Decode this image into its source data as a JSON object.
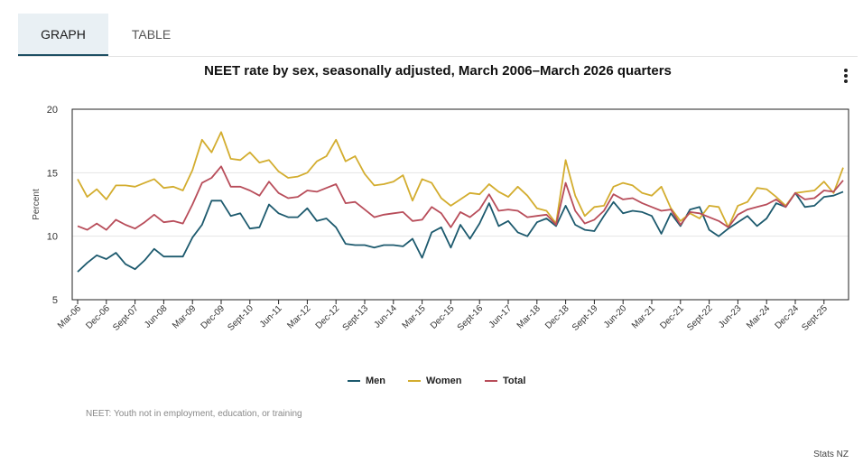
{
  "tabs": [
    {
      "label": "GRAPH"
    },
    {
      "label": "TABLE"
    }
  ],
  "footnote": "NEET: Youth not in employment, education, or training",
  "source": "Stats NZ",
  "chart_data": {
    "type": "line",
    "title": "NEET rate by sex, seasonally adjusted, March 2006–March 2026 quarters",
    "xlabel": "",
    "ylabel": "Percent",
    "ylim": [
      5,
      20
    ],
    "yticks": [
      5,
      10,
      15,
      20
    ],
    "grid": true,
    "legend_position": "bottom",
    "x": [
      "Mar-06",
      "Jun-06",
      "Sept-06",
      "Dec-06",
      "Mar-07",
      "Jun-07",
      "Sept-07",
      "Dec-07",
      "Mar-08",
      "Jun-08",
      "Sept-08",
      "Dec-08",
      "Mar-09",
      "Jun-09",
      "Sept-09",
      "Dec-09",
      "Mar-10",
      "Jun-10",
      "Sept-10",
      "Dec-10",
      "Mar-11",
      "Jun-11",
      "Sept-11",
      "Dec-11",
      "Mar-12",
      "Jun-12",
      "Sept-12",
      "Dec-12",
      "Mar-13",
      "Jun-13",
      "Sept-13",
      "Dec-13",
      "Mar-14",
      "Jun-14",
      "Sept-14",
      "Dec-14",
      "Mar-15",
      "Jun-15",
      "Sept-15",
      "Dec-15",
      "Mar-16",
      "Jun-16",
      "Sept-16",
      "Dec-16",
      "Mar-17",
      "Jun-17",
      "Sept-17",
      "Dec-17",
      "Mar-18",
      "Jun-18",
      "Sept-18",
      "Dec-18",
      "Mar-19",
      "Jun-19",
      "Sept-19",
      "Dec-19",
      "Mar-20",
      "Jun-20",
      "Sept-20",
      "Dec-20",
      "Mar-21",
      "Jun-21",
      "Sept-21",
      "Dec-21",
      "Mar-22",
      "Jun-22",
      "Sept-22",
      "Dec-22",
      "Mar-23",
      "Jun-23",
      "Sept-23",
      "Dec-23",
      "Mar-24",
      "Jun-24",
      "Sept-24",
      "Dec-24",
      "Mar-25",
      "Jun-25",
      "Sept-25",
      "Dec-25",
      "Mar-26"
    ],
    "xtick_labels": [
      "Mar-06",
      "Dec-06",
      "Sept-07",
      "Jun-08",
      "Mar-09",
      "Dec-09",
      "Sept-10",
      "Jun-11",
      "Mar-12",
      "Dec-12",
      "Sept-13",
      "Jun-14",
      "Mar-15",
      "Dec-15",
      "Sept-16",
      "Jun-17",
      "Mar-18",
      "Dec-18",
      "Sept-19",
      "Jun-20",
      "Mar-21",
      "Dec-21",
      "Sept-22",
      "Jun-23",
      "Mar-24",
      "Dec-24",
      "Sept-25"
    ],
    "series": [
      {
        "name": "Men",
        "color": "#1d5a6e",
        "values": [
          7.2,
          7.9,
          8.5,
          8.2,
          8.7,
          7.8,
          7.4,
          8.1,
          9.0,
          8.4,
          8.4,
          8.4,
          9.9,
          10.9,
          12.8,
          12.8,
          11.6,
          11.8,
          10.6,
          10.7,
          12.5,
          11.8,
          11.5,
          11.5,
          12.2,
          11.2,
          11.4,
          10.7,
          9.4,
          9.3,
          9.3,
          9.1,
          9.3,
          9.3,
          9.2,
          9.8,
          8.3,
          10.3,
          10.7,
          9.1,
          10.9,
          9.8,
          11.0,
          12.6,
          10.8,
          11.2,
          10.3,
          10.0,
          11.1,
          11.4,
          10.8,
          12.4,
          10.9,
          10.5,
          10.4,
          11.6,
          12.7,
          11.8,
          12.0,
          11.9,
          11.6,
          10.2,
          11.8,
          10.8,
          12.1,
          12.3,
          10.5,
          10.0,
          10.6,
          11.1,
          11.6,
          10.8,
          11.4,
          12.6,
          12.3,
          13.4,
          12.3,
          12.4,
          13.1,
          13.2,
          13.5
        ]
      },
      {
        "name": "Women",
        "color": "#d3ad2f",
        "values": [
          14.5,
          13.1,
          13.7,
          12.9,
          14.0,
          14.0,
          13.9,
          14.2,
          14.5,
          13.8,
          13.9,
          13.6,
          15.2,
          17.6,
          16.6,
          18.2,
          16.1,
          16.0,
          16.6,
          15.8,
          16.0,
          15.1,
          14.6,
          14.7,
          15.0,
          15.9,
          16.3,
          17.6,
          15.9,
          16.3,
          14.9,
          14.0,
          14.1,
          14.3,
          14.8,
          12.8,
          14.5,
          14.2,
          13.0,
          12.4,
          12.9,
          13.4,
          13.3,
          14.1,
          13.5,
          13.1,
          13.9,
          13.2,
          12.2,
          12.0,
          11.0,
          16.0,
          13.2,
          11.6,
          12.3,
          12.4,
          13.9,
          14.2,
          14.0,
          13.4,
          13.2,
          13.9,
          12.2,
          11.2,
          11.8,
          11.4,
          12.4,
          12.3,
          10.7,
          12.4,
          12.7,
          13.8,
          13.7,
          13.1,
          12.4,
          13.4,
          13.5,
          13.6,
          14.3,
          13.4,
          15.4
        ]
      },
      {
        "name": "Total",
        "color": "#b84d5a",
        "values": [
          10.8,
          10.5,
          11.0,
          10.5,
          11.3,
          10.9,
          10.6,
          11.1,
          11.7,
          11.1,
          11.2,
          11.0,
          12.5,
          14.2,
          14.6,
          15.5,
          13.9,
          13.9,
          13.6,
          13.2,
          14.3,
          13.4,
          13.0,
          13.1,
          13.6,
          13.5,
          13.8,
          14.1,
          12.6,
          12.7,
          12.1,
          11.5,
          11.7,
          11.8,
          11.9,
          11.2,
          11.3,
          12.3,
          11.8,
          10.7,
          11.9,
          11.5,
          12.1,
          13.3,
          12.0,
          12.1,
          12.0,
          11.5,
          11.6,
          11.7,
          10.9,
          14.2,
          12.0,
          11.0,
          11.3,
          12.0,
          13.3,
          12.9,
          13.0,
          12.6,
          12.3,
          12.0,
          12.1,
          10.9,
          11.9,
          11.8,
          11.5,
          11.2,
          10.7,
          11.7,
          12.1,
          12.3,
          12.5,
          12.9,
          12.3,
          13.4,
          12.9,
          13.0,
          13.6,
          13.5,
          14.4
        ]
      }
    ]
  }
}
